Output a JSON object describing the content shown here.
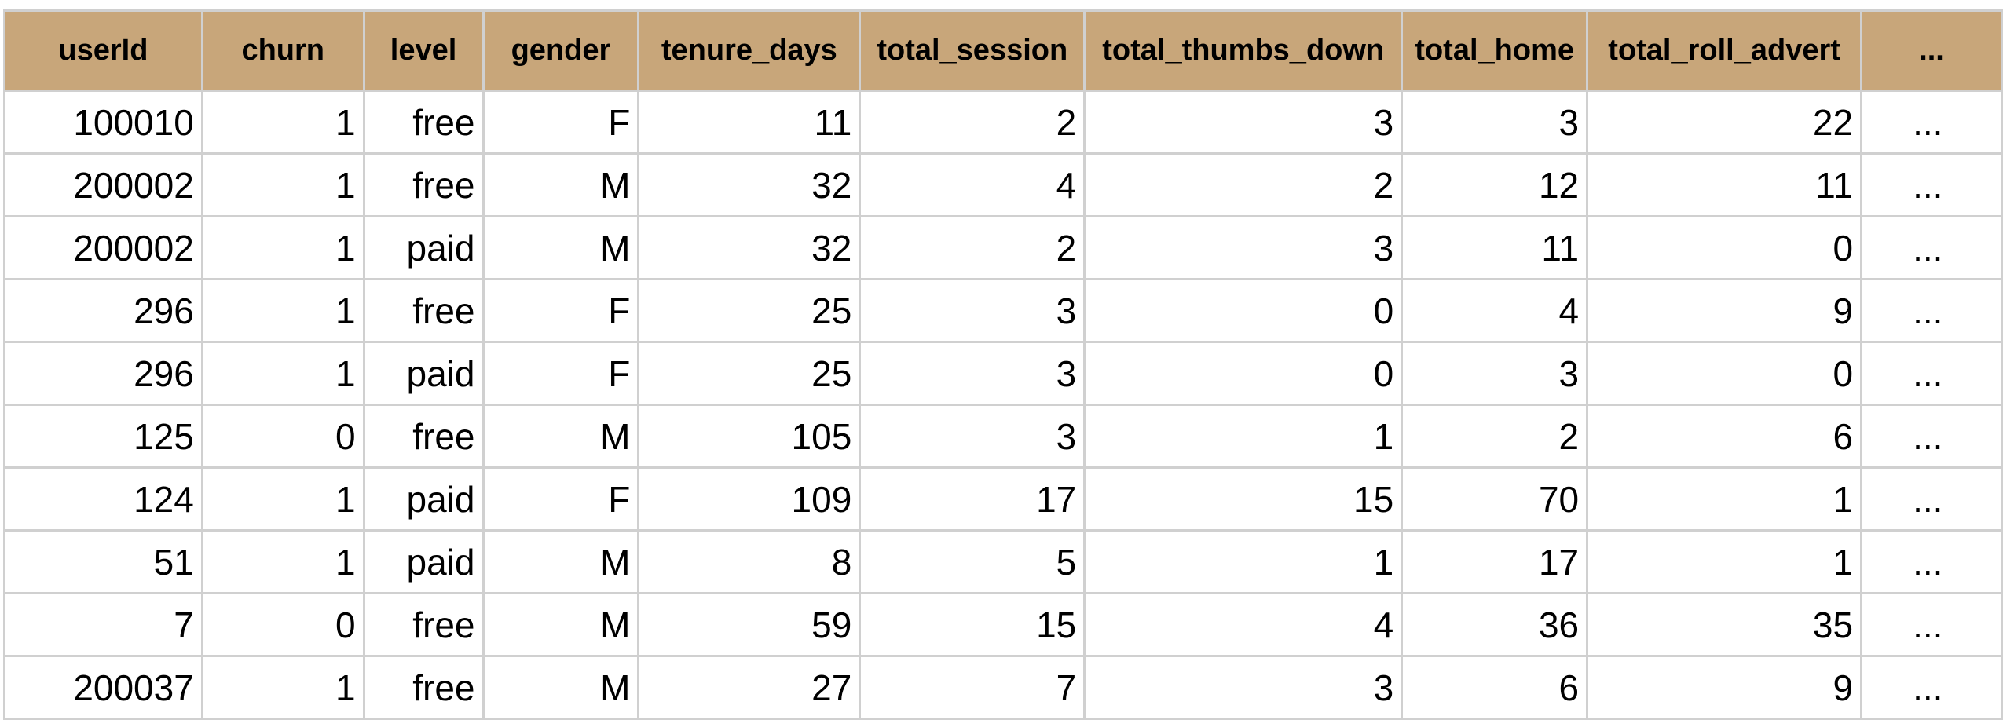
{
  "table": {
    "header_bg": "#c8a67a",
    "border_color": "#d0d0d0",
    "columns": [
      "userId",
      "churn",
      "level",
      "gender",
      "tenure_days",
      "total_session",
      "total_thumbs_down",
      "total_home",
      "total_roll_advert",
      "..."
    ],
    "rows": [
      [
        "100010",
        "1",
        "free",
        "F",
        "11",
        "2",
        "3",
        "3",
        "22",
        "..."
      ],
      [
        "200002",
        "1",
        "free",
        "M",
        "32",
        "4",
        "2",
        "12",
        "11",
        "..."
      ],
      [
        "200002",
        "1",
        "paid",
        "M",
        "32",
        "2",
        "3",
        "11",
        "0",
        "..."
      ],
      [
        "296",
        "1",
        "free",
        "F",
        "25",
        "3",
        "0",
        "4",
        "9",
        "..."
      ],
      [
        "296",
        "1",
        "paid",
        "F",
        "25",
        "3",
        "0",
        "3",
        "0",
        "..."
      ],
      [
        "125",
        "0",
        "free",
        "M",
        "105",
        "3",
        "1",
        "2",
        "6",
        "..."
      ],
      [
        "124",
        "1",
        "paid",
        "F",
        "109",
        "17",
        "15",
        "70",
        "1",
        "..."
      ],
      [
        "51",
        "1",
        "paid",
        "M",
        "8",
        "5",
        "1",
        "17",
        "1",
        "..."
      ],
      [
        "7",
        "0",
        "free",
        "M",
        "59",
        "15",
        "4",
        "36",
        "35",
        "..."
      ],
      [
        "200037",
        "1",
        "free",
        "M",
        "27",
        "7",
        "3",
        "6",
        "9",
        "..."
      ]
    ]
  }
}
